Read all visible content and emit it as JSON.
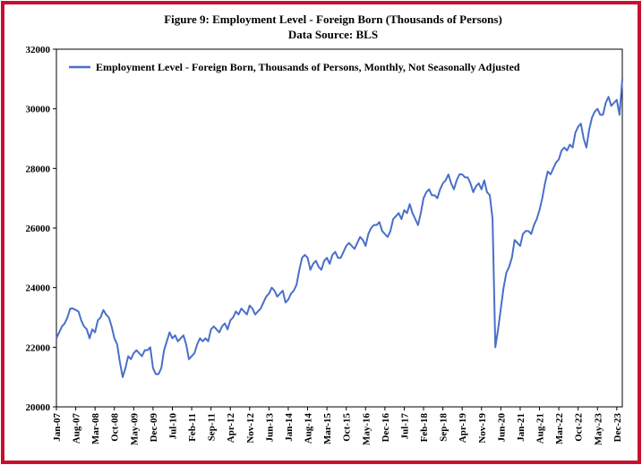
{
  "chart_data": {
    "type": "line",
    "title": "Figure 9: Employment Level - Foreign Born (Thousands of Persons)",
    "subtitle": "Data Source: BLS",
    "ylim": [
      20000,
      32000
    ],
    "yticks": [
      20000,
      22000,
      24000,
      26000,
      28000,
      30000,
      32000
    ],
    "legend": "top-left",
    "categories": [
      "Jan-07",
      null,
      null,
      null,
      null,
      null,
      null,
      "Aug-07",
      null,
      null,
      null,
      null,
      null,
      null,
      "Mar-08",
      null,
      null,
      null,
      null,
      null,
      null,
      "Oct-08",
      null,
      null,
      null,
      null,
      null,
      null,
      "May-09",
      null,
      null,
      null,
      null,
      null,
      null,
      "Dec-09",
      null,
      null,
      null,
      null,
      null,
      null,
      "Jul-10",
      null,
      null,
      null,
      null,
      null,
      null,
      "Feb-11",
      null,
      null,
      null,
      null,
      null,
      null,
      "Sep-11",
      null,
      null,
      null,
      null,
      null,
      null,
      "Apr-12",
      null,
      null,
      null,
      null,
      null,
      null,
      "Nov-12",
      null,
      null,
      null,
      null,
      null,
      null,
      "Jun-13",
      null,
      null,
      null,
      null,
      null,
      null,
      "Jan-14",
      null,
      null,
      null,
      null,
      null,
      null,
      "Aug-14",
      null,
      null,
      null,
      null,
      null,
      null,
      "Mar-15",
      null,
      null,
      null,
      null,
      null,
      null,
      "Oct-15",
      null,
      null,
      null,
      null,
      null,
      null,
      "May-16",
      null,
      null,
      null,
      null,
      null,
      null,
      "Dec-16",
      null,
      null,
      null,
      null,
      null,
      null,
      "Jul-17",
      null,
      null,
      null,
      null,
      null,
      null,
      "Feb-18",
      null,
      null,
      null,
      null,
      null,
      null,
      "Sep-18",
      null,
      null,
      null,
      null,
      null,
      null,
      "Apr-19",
      null,
      null,
      null,
      null,
      null,
      null,
      "Nov-19",
      null,
      null,
      null,
      null,
      null,
      null,
      "Jun-20",
      null,
      null,
      null,
      null,
      null,
      null,
      "Jan-21",
      null,
      null,
      null,
      null,
      null,
      null,
      "Aug-21",
      null,
      null,
      null,
      null,
      null,
      null,
      "Mar-22",
      null,
      null,
      null,
      null,
      null,
      null,
      "Oct-22",
      null,
      null,
      null,
      null,
      null,
      null,
      "May-23",
      null,
      null,
      null,
      null,
      null,
      null,
      "Dec-23",
      null,
      null
    ],
    "series": [
      {
        "name": "Employment Level - Foreign Born, Thousands of Persons, Monthly, Not Seasonally Adjusted",
        "color": "#4a6fc7",
        "values": [
          22300,
          22500,
          22700,
          22800,
          23000,
          23300,
          23300,
          23250,
          23200,
          22900,
          22700,
          22600,
          22300,
          22600,
          22500,
          22900,
          23000,
          23250,
          23100,
          23000,
          22700,
          22300,
          22100,
          21500,
          21000,
          21300,
          21700,
          21600,
          21800,
          21900,
          21800,
          21700,
          21900,
          21900,
          22000,
          21300,
          21100,
          21100,
          21300,
          21900,
          22200,
          22500,
          22300,
          22400,
          22200,
          22300,
          22400,
          22100,
          21600,
          21700,
          21800,
          22100,
          22300,
          22200,
          22300,
          22200,
          22600,
          22700,
          22600,
          22500,
          22700,
          22800,
          22600,
          22900,
          23000,
          23200,
          23100,
          23300,
          23200,
          23100,
          23400,
          23300,
          23100,
          23200,
          23300,
          23500,
          23700,
          23800,
          24000,
          23900,
          23700,
          23800,
          23900,
          23500,
          23600,
          23800,
          23900,
          24100,
          24600,
          25000,
          25100,
          25000,
          24600,
          24800,
          24900,
          24700,
          24600,
          24900,
          25000,
          24800,
          25100,
          25200,
          25000,
          25000,
          25200,
          25400,
          25500,
          25400,
          25300,
          25500,
          25700,
          25600,
          25400,
          25800,
          26000,
          26100,
          26100,
          26200,
          25900,
          25800,
          25700,
          25900,
          26300,
          26400,
          26500,
          26300,
          26600,
          26500,
          26800,
          26500,
          26300,
          26100,
          26500,
          27000,
          27200,
          27300,
          27100,
          27100,
          27000,
          27300,
          27500,
          27600,
          27800,
          27500,
          27300,
          27600,
          27800,
          27800,
          27700,
          27700,
          27500,
          27200,
          27400,
          27500,
          27300,
          27600,
          27200,
          27100,
          26300,
          22000,
          22600,
          23300,
          24000,
          24500,
          24700,
          25000,
          25600,
          25500,
          25400,
          25800,
          25900,
          25900,
          25800,
          26100,
          26300,
          26600,
          27000,
          27500,
          27900,
          27800,
          28000,
          28200,
          28300,
          28600,
          28700,
          28600,
          28800,
          28700,
          29200,
          29400,
          29500,
          29000,
          28700,
          29300,
          29700,
          29900,
          30000,
          29800,
          29800,
          30200,
          30400,
          30100,
          30200,
          30300,
          29800,
          31000
        ]
      }
    ]
  }
}
